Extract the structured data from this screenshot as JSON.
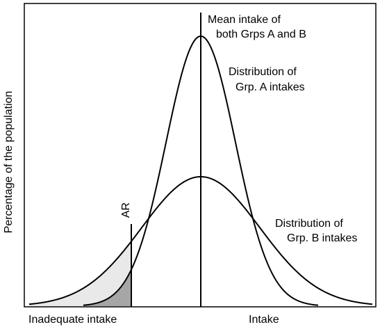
{
  "labels": {
    "y_axis": "Percentage of the population",
    "x_axis_left": "Inadequate intake",
    "x_axis_right": "Intake",
    "mean_line_1": "Mean intake of",
    "mean_line_2": "both Grps A and B",
    "dist_a_1": "Distribution of",
    "dist_a_2": "Grp. A intakes",
    "dist_b_1": "Distribution of",
    "dist_b_2": "Grp. B intakes",
    "ar": "AR"
  },
  "colors": {
    "line": "#000000",
    "shade_group_a": "#a6a6a6",
    "shade_group_b": "#e9e9e9"
  }
}
